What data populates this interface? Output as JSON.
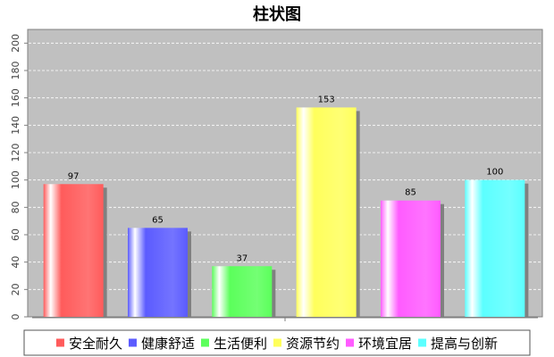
{
  "chart_data": {
    "type": "bar",
    "title": "柱状图",
    "xlabel": "",
    "ylabel": "",
    "categories": [
      "安全耐久",
      "健康舒适",
      "生活便利",
      "资源节约",
      "环境宜居",
      "提高与创新"
    ],
    "values": [
      97,
      65,
      37,
      153,
      85,
      100
    ],
    "colors": [
      "#ff5b5b",
      "#5b5bff",
      "#5bff5b",
      "#ffff5b",
      "#ff5bff",
      "#5bffff"
    ],
    "ylim": [
      0,
      210
    ],
    "yticks": [
      0,
      20,
      40,
      60,
      80,
      100,
      120,
      140,
      160,
      180,
      200
    ],
    "ytick_labels": [
      "0",
      "20",
      "40",
      "60",
      "80",
      "100",
      "120",
      "140",
      "160",
      "180",
      "200"
    ],
    "data_labels": [
      "97",
      "65",
      "37",
      "153",
      "85",
      "100"
    ],
    "grid": true,
    "legend_position": "bottom",
    "plot_background": "#c0c0c0"
  }
}
